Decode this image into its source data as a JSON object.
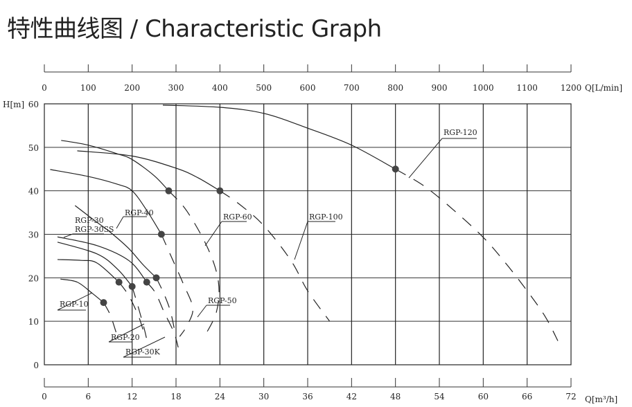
{
  "title": "特性曲线图 / Characteristic Graph",
  "chart_data": {
    "type": "line",
    "top_axis": {
      "label": "Q[L/min]",
      "range": [
        0,
        1200
      ],
      "ticks": [
        "0",
        "100",
        "200",
        "300",
        "400",
        "500",
        "600",
        "700",
        "800",
        "900",
        "1000",
        "1100",
        "1200"
      ]
    },
    "x_axis": {
      "label": "Q[m³/h]",
      "range": [
        0,
        72
      ],
      "ticks": [
        "0",
        "6",
        "12",
        "18",
        "24",
        "30",
        "36",
        "42",
        "48",
        "54",
        "60",
        "66",
        "72"
      ]
    },
    "y_axis": {
      "label": "H[m]",
      "range": [
        0,
        60
      ],
      "ticks": [
        "0",
        "10",
        "20",
        "30",
        "40",
        "50",
        "60"
      ]
    },
    "grid": true,
    "series": [
      {
        "solid": [
          [
            16.2,
            59.7
          ],
          [
            24,
            59.2
          ],
          [
            30,
            57.8
          ],
          [
            36,
            54.4
          ],
          [
            42,
            50.5
          ],
          [
            48,
            45
          ]
        ],
        "dashed": [
          [
            48,
            45
          ],
          [
            52,
            41
          ],
          [
            56,
            35.5
          ],
          [
            60,
            29.3
          ],
          [
            63,
            23.5
          ],
          [
            66,
            17
          ],
          [
            68.5,
            11
          ],
          [
            70.2,
            5.5
          ]
        ],
        "marker": [
          48,
          45
        ]
      },
      {
        "solid": [
          [
            4.5,
            49.2
          ],
          [
            12,
            48
          ],
          [
            18,
            45.2
          ],
          [
            21,
            43
          ],
          [
            24,
            40
          ]
        ],
        "dashed": [
          [
            24,
            40
          ],
          [
            26.6,
            37
          ],
          [
            30,
            32
          ],
          [
            33.7,
            24
          ],
          [
            36,
            17
          ],
          [
            39,
            10
          ]
        ],
        "marker": [
          24,
          40
        ]
      },
      {
        "solid": [
          [
            2.3,
            51.6
          ],
          [
            6,
            50.5
          ],
          [
            10,
            48.5
          ],
          [
            12,
            47.2
          ],
          [
            15,
            43.5
          ],
          [
            17,
            40
          ]
        ],
        "dashed": [
          [
            17,
            40
          ],
          [
            19.5,
            35.3
          ],
          [
            22.4,
            26.6
          ],
          [
            23.8,
            19
          ],
          [
            23.5,
            12
          ],
          [
            21.7,
            6
          ]
        ],
        "marker": [
          17,
          40
        ]
      },
      {
        "solid": [
          [
            0.8,
            44.9
          ],
          [
            6,
            43.3
          ],
          [
            10,
            41.5
          ],
          [
            12,
            40
          ],
          [
            14,
            35.5
          ],
          [
            16,
            30
          ]
        ],
        "dashed": [
          [
            16,
            30
          ],
          [
            17.1,
            25.8
          ],
          [
            19,
            18.6
          ],
          [
            20.3,
            13
          ],
          [
            19.5,
            9
          ],
          [
            18.5,
            6.5
          ]
        ],
        "marker": [
          16,
          30
        ]
      },
      {
        "solid": [
          [
            4.2,
            36.6
          ],
          [
            7,
            33
          ],
          [
            9,
            30.5
          ],
          [
            11.5,
            26.8
          ],
          [
            13.5,
            23
          ],
          [
            15.3,
            20
          ]
        ],
        "dashed": [
          [
            15.3,
            20
          ],
          [
            16.3,
            16.5
          ],
          [
            17.2,
            12.5
          ],
          [
            17.8,
            8
          ]
        ],
        "marker": [
          15.3,
          20
        ]
      },
      {
        "solid": [
          [
            1.8,
            29.4
          ],
          [
            7.2,
            27.4
          ],
          [
            11.6,
            23.9
          ],
          [
            14,
            19
          ]
        ],
        "dashed": [
          [
            14,
            19
          ],
          [
            15.2,
            16.5
          ],
          [
            16.4,
            12
          ],
          [
            17.7,
            7.5
          ],
          [
            18.3,
            4
          ]
        ],
        "marker": [
          14,
          19
        ]
      },
      {
        "solid": [
          [
            1.8,
            28.2
          ],
          [
            7.2,
            25.5
          ],
          [
            10,
            22
          ],
          [
            12,
            18
          ]
        ],
        "dashed": [
          [
            12,
            18
          ],
          [
            12.8,
            13.5
          ],
          [
            13.7,
            8
          ],
          [
            14.1,
            5
          ]
        ],
        "marker": [
          12,
          18
        ]
      },
      {
        "solid": [
          [
            1.8,
            24.2
          ],
          [
            5,
            24
          ],
          [
            7.2,
            23.4
          ],
          [
            10.2,
            19
          ]
        ],
        "dashed": [
          [
            10.2,
            19
          ],
          [
            11.5,
            16
          ],
          [
            12.8,
            11.5
          ],
          [
            13.5,
            8
          ]
        ],
        "marker": [
          10.2,
          19
        ]
      },
      {
        "solid": [
          [
            2.2,
            19.7
          ],
          [
            4.5,
            19
          ],
          [
            6.5,
            16.5
          ],
          [
            8.1,
            14.3
          ]
        ],
        "dashed": [
          [
            8.1,
            14.3
          ],
          [
            9,
            11.5
          ],
          [
            9.8,
            7.5
          ]
        ],
        "marker": [
          8.1,
          14.3
        ]
      }
    ],
    "annotations": [
      "RGP-120",
      "RGP-100",
      "RGP-60",
      "RGP-40",
      "RGP-30",
      "RGP-30SS",
      "RGP-10",
      "RGP-20",
      "RGP-30K",
      "RGP-50"
    ]
  }
}
